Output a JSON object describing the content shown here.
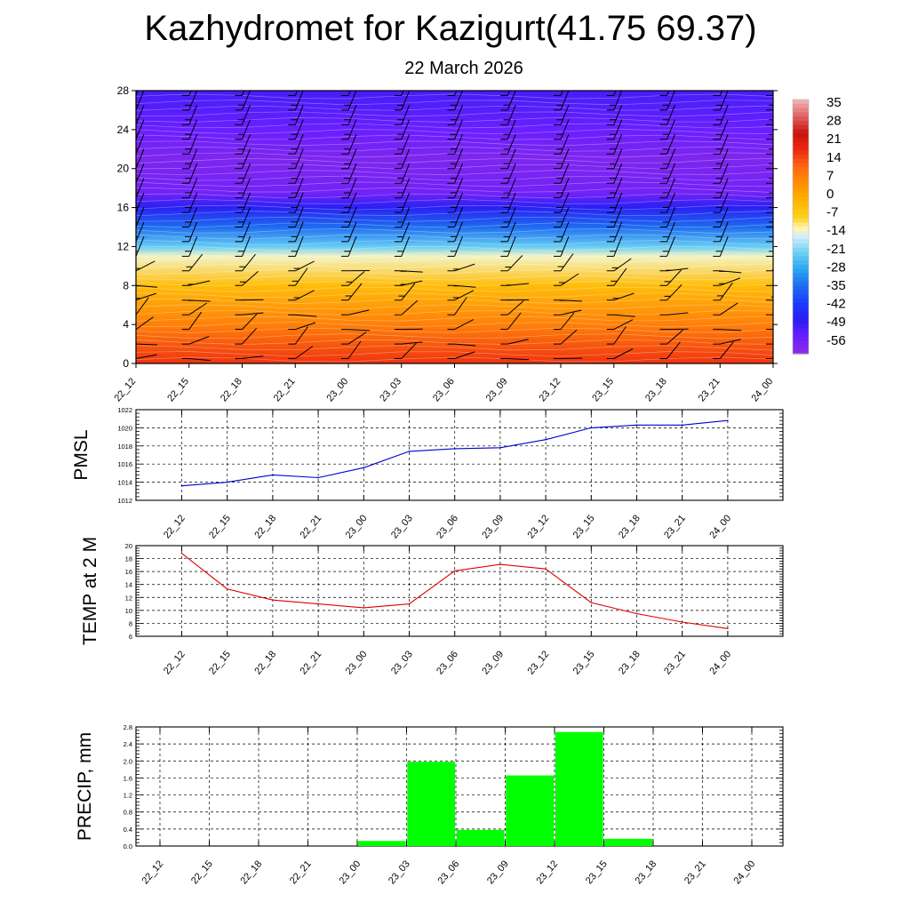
{
  "title": "Kazhydromet for Kazigurt(41.75 69.37)",
  "subtitle": "22 March 2026",
  "time_labels": [
    "22_12",
    "22_15",
    "22_18",
    "22_21",
    "23_00",
    "23_03",
    "23_06",
    "23_09",
    "23_12",
    "23_15",
    "23_18",
    "23_21",
    "24_00"
  ],
  "colors": {
    "pmsl_line": "#0000cc",
    "temp_line": "#dd0000",
    "precip_bar": "#00ff00",
    "grid": "#000000"
  },
  "chart_data": [
    {
      "type": "heatmap",
      "title": "",
      "xlabel": "",
      "ylabel": "",
      "x": [
        "22_12",
        "22_15",
        "22_18",
        "22_21",
        "23_00",
        "23_03",
        "23_06",
        "23_09",
        "23_12",
        "23_15",
        "23_18",
        "23_21",
        "24_00"
      ],
      "yticks": [
        0,
        4,
        8,
        12,
        16,
        20,
        24,
        28
      ],
      "ylim": [
        0,
        28
      ],
      "colorbar_labels": [
        "35",
        "28",
        "21",
        "14",
        "7",
        "0",
        "-7",
        "-14",
        "-21",
        "-28",
        "-35",
        "-42",
        "-49",
        "-56"
      ],
      "colorbar_range": [
        -63,
        42
      ],
      "temperature_profile": [
        {
          "height": 0,
          "value": 20
        },
        {
          "height": 4,
          "value": 10
        },
        {
          "height": 8,
          "value": -2
        },
        {
          "height": 11,
          "value": -12
        },
        {
          "height": 12,
          "value": -22
        },
        {
          "height": 14,
          "value": -35
        },
        {
          "height": 16,
          "value": -48
        },
        {
          "height": 17.5,
          "value": -58
        },
        {
          "height": 21,
          "value": -60
        },
        {
          "height": 24,
          "value": -56
        },
        {
          "height": 28,
          "value": -52
        }
      ],
      "note": "wind barbs overlaid"
    },
    {
      "type": "line",
      "ylabel": "PMSL",
      "x": [
        "22_12",
        "22_15",
        "22_18",
        "22_21",
        "23_00",
        "23_03",
        "23_06",
        "23_09",
        "23_12",
        "23_15",
        "23_18",
        "23_21",
        "24_00"
      ],
      "values": [
        1013.6,
        1014.0,
        1014.8,
        1014.5,
        1015.6,
        1017.4,
        1017.7,
        1017.8,
        1018.7,
        1020.0,
        1020.3,
        1020.3,
        1020.8
      ],
      "ylim": [
        1012,
        1022
      ],
      "yticks": [
        "1012",
        "1014",
        "1016",
        "1018",
        "1020",
        "1022"
      ]
    },
    {
      "type": "line",
      "ylabel": "TEMP at 2 M",
      "x": [
        "22_12",
        "22_15",
        "22_18",
        "22_21",
        "23_00",
        "23_03",
        "23_06",
        "23_09",
        "23_12",
        "23_15",
        "23_18",
        "23_21",
        "24_00"
      ],
      "values": [
        18.8,
        13.3,
        11.6,
        11.0,
        10.4,
        11.0,
        16.1,
        17.1,
        16.4,
        11.2,
        9.5,
        8.2,
        7.2
      ],
      "ylim": [
        6,
        20
      ],
      "yticks": [
        "6",
        "8",
        "10",
        "12",
        "14",
        "16",
        "18",
        "20"
      ]
    },
    {
      "type": "bar",
      "ylabel": "PRECIP, mm",
      "categories": [
        "22_12",
        "22_15",
        "22_18",
        "22_21",
        "23_00",
        "23_03",
        "23_06",
        "23_09",
        "23_12",
        "23_15",
        "23_18",
        "23_21",
        "24_00"
      ],
      "values": [
        0,
        0,
        0,
        0,
        0.12,
        1.98,
        0.38,
        1.66,
        2.68,
        0.17,
        0,
        0,
        0
      ],
      "ylim": [
        0,
        2.8
      ],
      "yticks": [
        "0.0",
        "0.4",
        "0.8",
        "1.2",
        "1.6",
        "2.0",
        "2.4",
        "2.8"
      ]
    }
  ]
}
